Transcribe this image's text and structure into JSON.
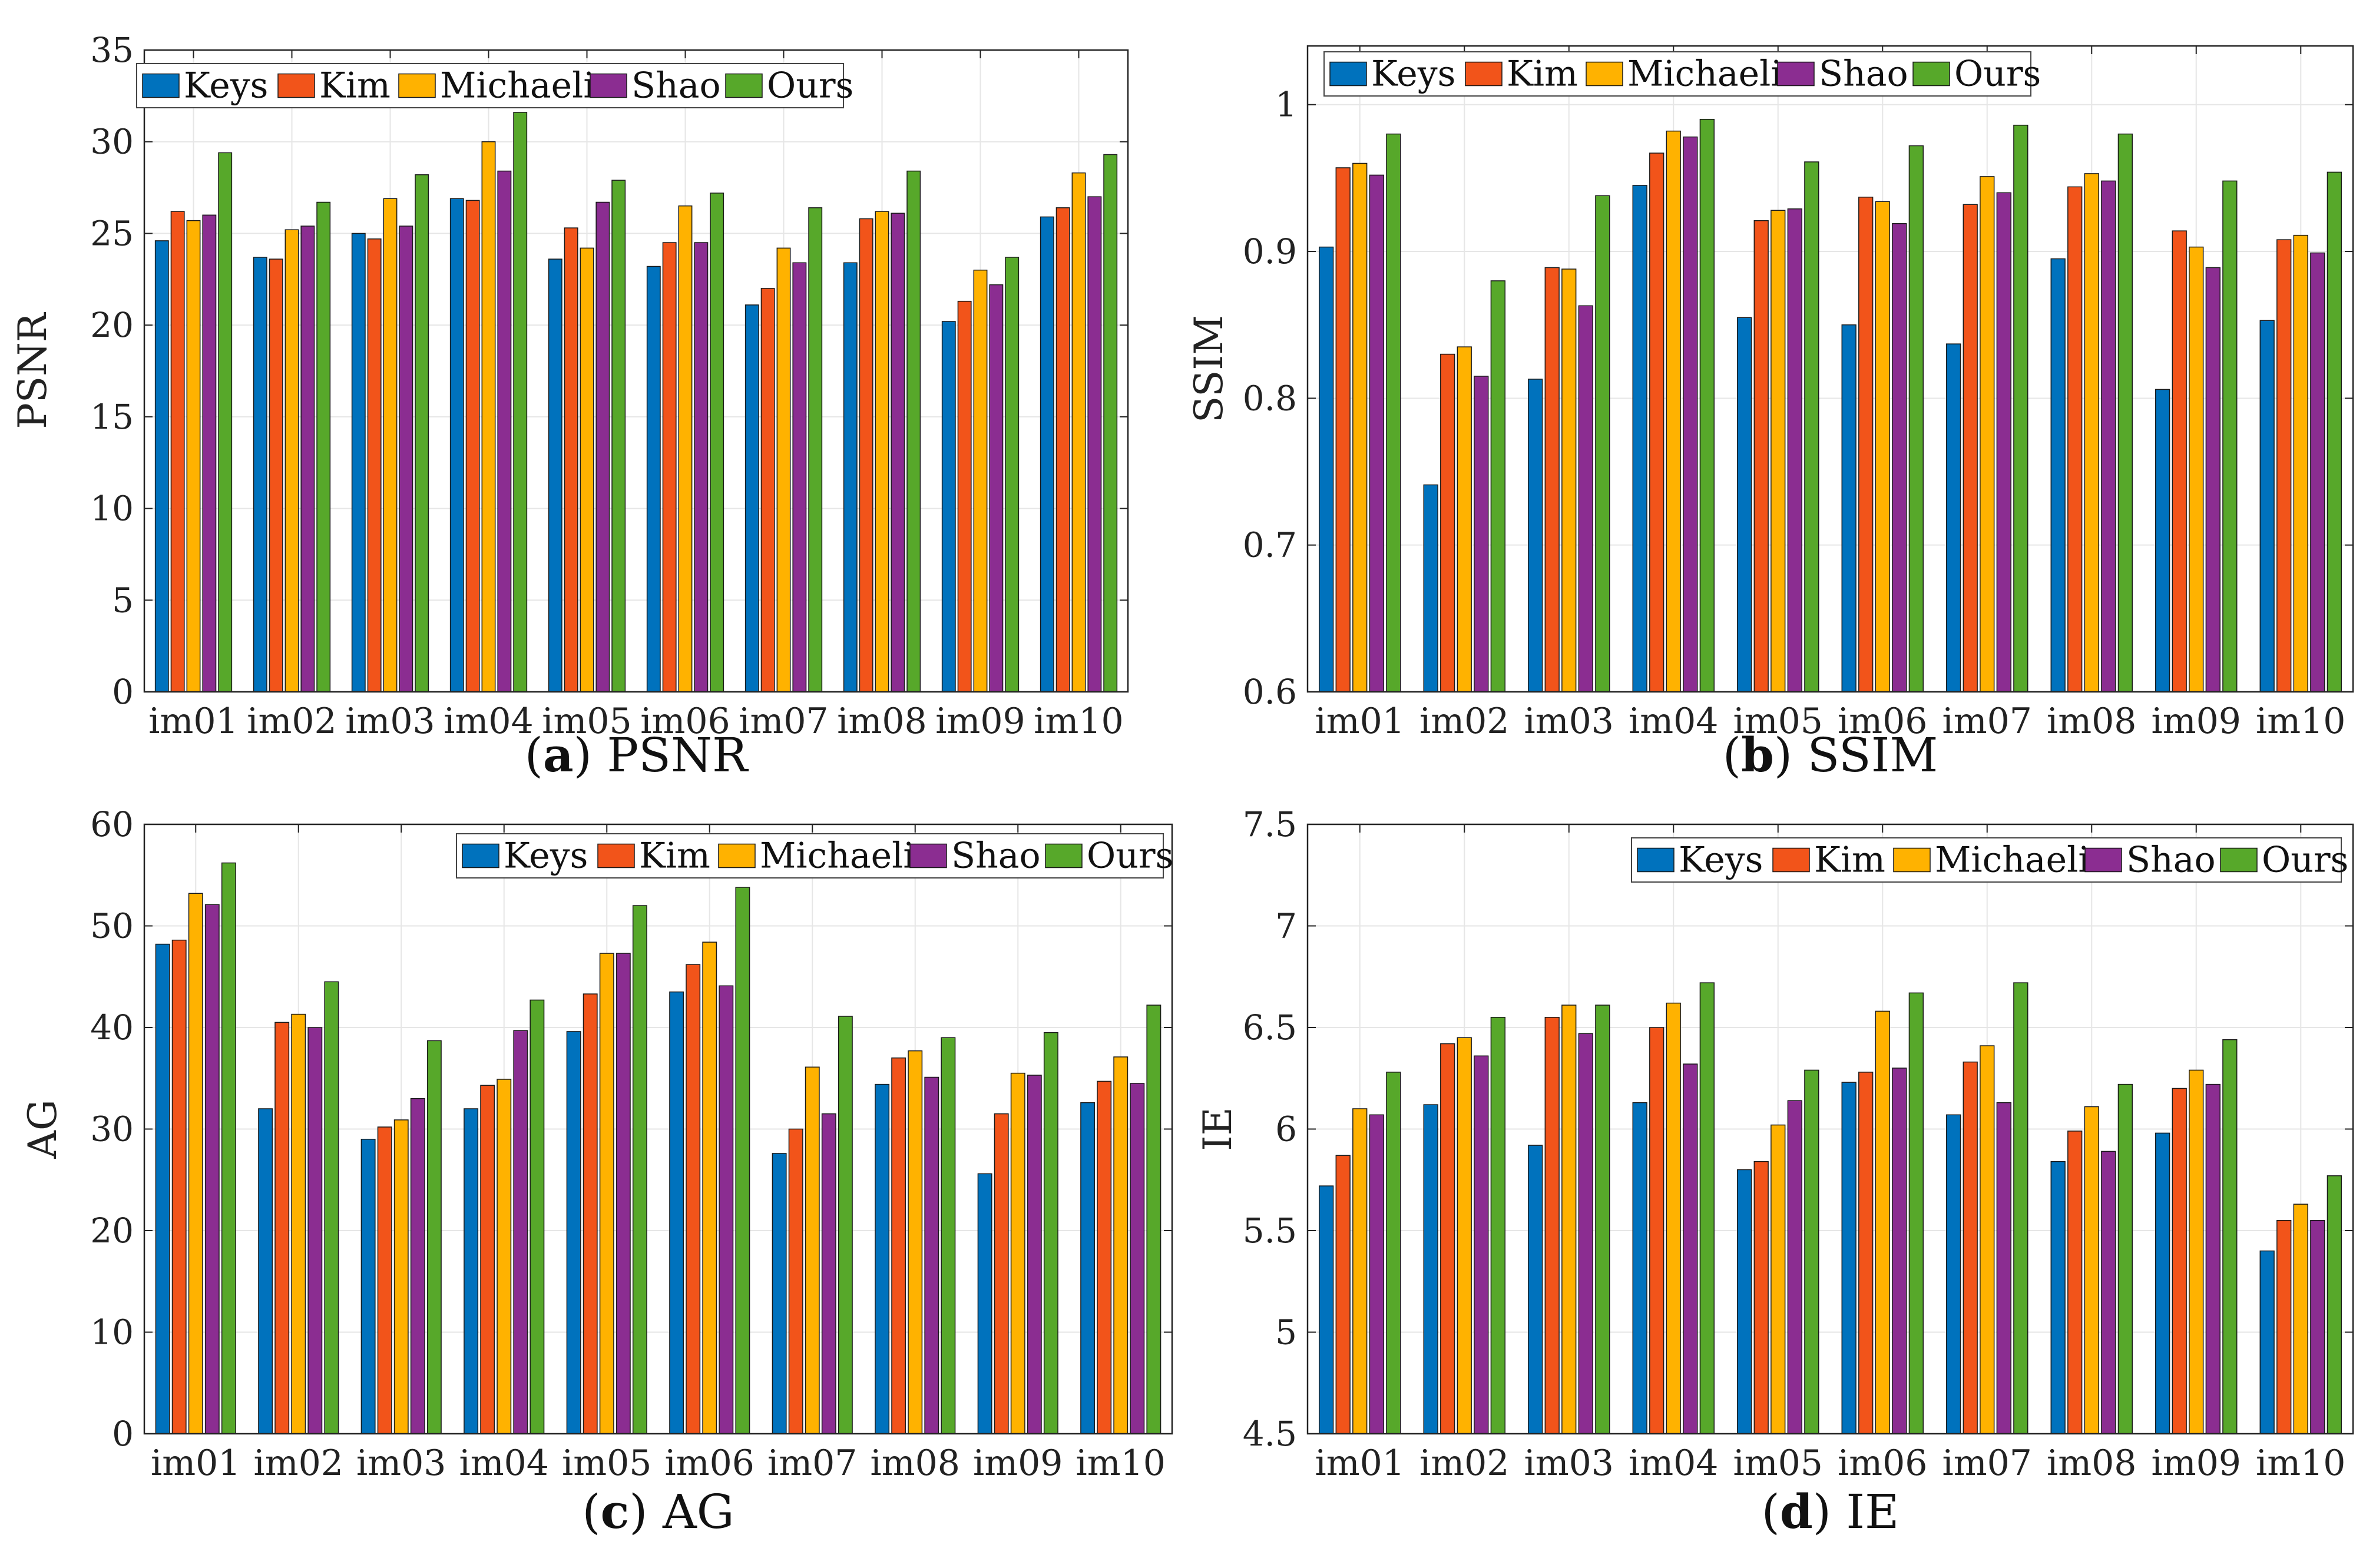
{
  "colors": {
    "Keys": "#0072BD",
    "Kim": "#F2541A",
    "Michaeli": "#FFB200",
    "Shao": "#8B2D91",
    "Ours": "#57A82A",
    "grid": "#e6e6e6",
    "axis": "#222222"
  },
  "chart_data": [
    {
      "type": "bar",
      "panel": "a",
      "caption_letter": "a",
      "caption_text": "PSNR",
      "ylabel": "PSNR",
      "ylim": [
        0,
        35
      ],
      "yticks": [
        0,
        5,
        10,
        15,
        20,
        25,
        30,
        35
      ],
      "ytick_labels": [
        "0",
        "5",
        "10",
        "15",
        "20",
        "25",
        "30",
        "35"
      ],
      "legend_position": "top-left",
      "categories": [
        "im01",
        "im02",
        "im03",
        "im04",
        "im05",
        "im06",
        "im07",
        "im08",
        "im09",
        "im10"
      ],
      "series": [
        {
          "name": "Keys",
          "values": [
            24.6,
            23.7,
            25.0,
            26.9,
            23.6,
            23.2,
            21.1,
            23.4,
            20.2,
            25.9
          ]
        },
        {
          "name": "Kim",
          "values": [
            26.2,
            23.6,
            24.7,
            26.8,
            25.3,
            24.5,
            22.0,
            25.8,
            21.3,
            26.4
          ]
        },
        {
          "name": "Michaeli",
          "values": [
            25.7,
            25.2,
            26.9,
            30.0,
            24.2,
            26.5,
            24.2,
            26.2,
            23.0,
            28.3
          ]
        },
        {
          "name": "Shao",
          "values": [
            26.0,
            25.4,
            25.4,
            28.4,
            26.7,
            24.5,
            23.4,
            26.1,
            22.2,
            27.0
          ]
        },
        {
          "name": "Ours",
          "values": [
            29.4,
            26.7,
            28.2,
            31.6,
            27.9,
            27.2,
            26.4,
            28.4,
            23.7,
            29.3
          ]
        }
      ]
    },
    {
      "type": "bar",
      "panel": "b",
      "caption_letter": "b",
      "caption_text": "SSIM",
      "ylabel": "SSIM",
      "ylim": [
        0.6,
        1.04
      ],
      "yticks": [
        0.6,
        0.7,
        0.8,
        0.9,
        1.0
      ],
      "ytick_labels": [
        "0.6",
        "0.7",
        "0.8",
        "0.9",
        "1"
      ],
      "legend_position": "top-left",
      "categories": [
        "im01",
        "im02",
        "im03",
        "im04",
        "im05",
        "im06",
        "im07",
        "im08",
        "im09",
        "im10"
      ],
      "series": [
        {
          "name": "Keys",
          "values": [
            0.903,
            0.741,
            0.813,
            0.945,
            0.855,
            0.85,
            0.837,
            0.895,
            0.806,
            0.853
          ]
        },
        {
          "name": "Kim",
          "values": [
            0.957,
            0.83,
            0.889,
            0.967,
            0.921,
            0.937,
            0.932,
            0.944,
            0.914,
            0.908
          ]
        },
        {
          "name": "Michaeli",
          "values": [
            0.96,
            0.835,
            0.888,
            0.982,
            0.928,
            0.934,
            0.951,
            0.953,
            0.903,
            0.911
          ]
        },
        {
          "name": "Shao",
          "values": [
            0.952,
            0.815,
            0.863,
            0.978,
            0.929,
            0.919,
            0.94,
            0.948,
            0.889,
            0.899
          ]
        },
        {
          "name": "Ours",
          "values": [
            0.98,
            0.88,
            0.938,
            0.99,
            0.961,
            0.972,
            0.986,
            0.98,
            0.948,
            0.954
          ]
        }
      ]
    },
    {
      "type": "bar",
      "panel": "c",
      "caption_letter": "c",
      "caption_text": "AG",
      "ylabel": "AG",
      "ylim": [
        0,
        60
      ],
      "yticks": [
        0,
        10,
        20,
        30,
        40,
        50,
        60
      ],
      "ytick_labels": [
        "0",
        "10",
        "20",
        "30",
        "40",
        "50",
        "60"
      ],
      "legend_position": "top-right",
      "categories": [
        "im01",
        "im02",
        "im03",
        "im04",
        "im05",
        "im06",
        "im07",
        "im08",
        "im09",
        "im10"
      ],
      "series": [
        {
          "name": "Keys",
          "values": [
            48.2,
            32.0,
            29.0,
            32.0,
            39.6,
            43.5,
            27.6,
            34.4,
            25.6,
            32.6
          ]
        },
        {
          "name": "Kim",
          "values": [
            48.6,
            40.5,
            30.2,
            34.3,
            43.3,
            46.2,
            30.0,
            37.0,
            31.5,
            34.7
          ]
        },
        {
          "name": "Michaeli",
          "values": [
            53.2,
            41.3,
            30.9,
            34.9,
            47.3,
            48.4,
            36.1,
            37.7,
            35.5,
            37.1
          ]
        },
        {
          "name": "Shao",
          "values": [
            52.1,
            40.0,
            33.0,
            39.7,
            47.3,
            44.1,
            31.5,
            35.1,
            35.3,
            34.5
          ]
        },
        {
          "name": "Ours",
          "values": [
            56.2,
            44.5,
            38.7,
            42.7,
            52.0,
            53.8,
            41.1,
            39.0,
            39.5,
            42.2
          ]
        }
      ]
    },
    {
      "type": "bar",
      "panel": "d",
      "caption_letter": "d",
      "caption_text": "IE",
      "ylabel": "IE",
      "ylim": [
        4.5,
        7.5
      ],
      "yticks": [
        4.5,
        5.0,
        5.5,
        6.0,
        6.5,
        7.0,
        7.5
      ],
      "ytick_labels": [
        "4.5",
        "5",
        "5.5",
        "6",
        "6.5",
        "7",
        "7.5"
      ],
      "legend_position": "top-right",
      "categories": [
        "im01",
        "im02",
        "im03",
        "im04",
        "im05",
        "im06",
        "im07",
        "im08",
        "im09",
        "im10"
      ],
      "series": [
        {
          "name": "Keys",
          "values": [
            5.72,
            6.12,
            5.92,
            6.13,
            5.8,
            6.23,
            6.07,
            5.84,
            5.98,
            5.4
          ]
        },
        {
          "name": "Kim",
          "values": [
            5.87,
            6.42,
            6.55,
            6.5,
            5.84,
            6.28,
            6.33,
            5.99,
            6.2,
            5.55
          ]
        },
        {
          "name": "Michaeli",
          "values": [
            6.1,
            6.45,
            6.61,
            6.62,
            6.02,
            6.58,
            6.41,
            6.11,
            6.29,
            5.63
          ]
        },
        {
          "name": "Shao",
          "values": [
            6.07,
            6.36,
            6.47,
            6.32,
            6.14,
            6.3,
            6.13,
            5.89,
            6.22,
            5.55
          ]
        },
        {
          "name": "Ours",
          "values": [
            6.28,
            6.55,
            6.61,
            6.72,
            6.29,
            6.67,
            6.72,
            6.22,
            6.44,
            5.77
          ]
        }
      ]
    }
  ]
}
